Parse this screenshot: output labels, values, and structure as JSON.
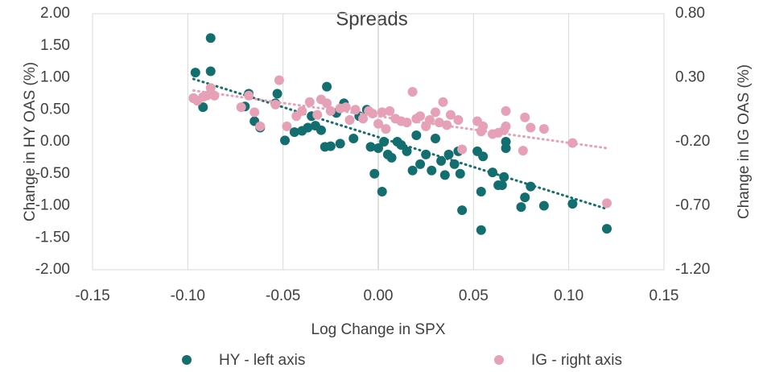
{
  "chart_data": {
    "type": "scatter",
    "title": "Spreads",
    "x_label": "Log Change in SPX",
    "y_label": "Change in HY OAS (%)",
    "y2_label": "Change in IG OAS (%)",
    "xlim": [
      -0.15,
      0.15
    ],
    "xticks": [
      {
        "value": -0.15,
        "label": "-0.15"
      },
      {
        "value": -0.1,
        "label": "-0.10"
      },
      {
        "value": -0.05,
        "label": "-0.05"
      },
      {
        "value": 0,
        "label": "0.00"
      },
      {
        "value": 0.05,
        "label": "0.05"
      },
      {
        "value": 0.1,
        "label": "0.10"
      },
      {
        "value": 0.15,
        "label": "0.15"
      }
    ],
    "ylim": [
      -2,
      2
    ],
    "yticks": [
      {
        "value": -2,
        "label": "-2.00"
      },
      {
        "value": -1.5,
        "label": "-1.50"
      },
      {
        "value": -1,
        "label": "-1.00"
      },
      {
        "value": -0.5,
        "label": "-0.50"
      },
      {
        "value": 0,
        "label": "0.00"
      },
      {
        "value": 0.5,
        "label": "0.50"
      },
      {
        "value": 1,
        "label": "1.00"
      },
      {
        "value": 1.5,
        "label": "1.50"
      },
      {
        "value": 2,
        "label": "2.00"
      }
    ],
    "y2lim": [
      -1.2,
      0.8
    ],
    "y2ticks": [
      {
        "value": -1.2,
        "label": "-1.20"
      },
      {
        "value": -0.7,
        "label": "-0.70"
      },
      {
        "value": -0.2,
        "label": "-0.20"
      },
      {
        "value": 0.3,
        "label": "0.30"
      },
      {
        "value": 0.8,
        "label": "0.80"
      }
    ],
    "grid": "x",
    "legend": "bottom",
    "series": [
      {
        "name": "HY - left axis",
        "color": "#136e6f",
        "axis": "y",
        "x": [
          -0.097,
          -0.096,
          -0.092,
          -0.088,
          -0.088,
          -0.07,
          -0.068,
          -0.065,
          -0.062,
          -0.054,
          -0.053,
          -0.049,
          -0.044,
          -0.04,
          -0.037,
          -0.035,
          -0.033,
          -0.03,
          -0.028,
          -0.027,
          -0.025,
          -0.022,
          -0.02,
          -0.018,
          -0.013,
          -0.01,
          -0.006,
          -0.004,
          -0.002,
          0.0,
          0.002,
          0.003,
          0.005,
          0.007,
          0.01,
          0.012,
          0.015,
          0.018,
          0.02,
          0.022,
          0.025,
          0.028,
          0.03,
          0.033,
          0.035,
          0.037,
          0.04,
          0.042,
          0.043,
          0.044,
          0.052,
          0.054,
          0.054,
          0.055,
          0.06,
          0.063,
          0.065,
          0.066,
          0.067,
          0.067,
          0.075,
          0.077,
          0.08,
          0.087,
          0.102,
          0.12
        ],
        "values": [
          0.68,
          1.08,
          0.54,
          1.62,
          1.1,
          0.55,
          0.75,
          0.32,
          0.22,
          0.6,
          0.75,
          0.02,
          0.15,
          0.17,
          0.22,
          0.4,
          0.25,
          0.18,
          -0.08,
          0.86,
          -0.07,
          0.45,
          -0.03,
          0.6,
          0.05,
          0.4,
          0.5,
          -0.08,
          -0.5,
          -0.1,
          -0.78,
          0.0,
          -0.2,
          -0.25,
          0.0,
          -0.05,
          -0.15,
          -0.45,
          0.1,
          -0.35,
          -0.2,
          -0.45,
          0.05,
          -0.3,
          -0.52,
          -0.2,
          -0.35,
          -0.15,
          -0.5,
          -1.07,
          -0.15,
          -0.78,
          -1.38,
          -0.23,
          -0.48,
          -0.68,
          -0.68,
          -0.55,
          -0.1,
          0.0,
          -1.02,
          -0.87,
          -0.7,
          -1.0,
          -0.97,
          -1.36
        ],
        "trend": {
          "x": [
            -0.097,
            0.12
          ],
          "values": [
            0.98,
            -1.05
          ]
        }
      },
      {
        "name": "IG - right axis",
        "color": "#e6a1b6",
        "axis": "y2",
        "x": [
          -0.097,
          -0.095,
          -0.092,
          -0.09,
          -0.088,
          -0.086,
          -0.072,
          -0.068,
          -0.065,
          -0.062,
          -0.054,
          -0.052,
          -0.048,
          -0.043,
          -0.04,
          -0.036,
          -0.032,
          -0.03,
          -0.027,
          -0.025,
          -0.02,
          -0.017,
          -0.015,
          -0.012,
          -0.008,
          -0.005,
          -0.003,
          0.0,
          0.002,
          0.004,
          0.006,
          0.009,
          0.012,
          0.015,
          0.018,
          0.02,
          0.022,
          0.025,
          0.027,
          0.03,
          0.032,
          0.034,
          0.036,
          0.038,
          0.042,
          0.044,
          0.052,
          0.054,
          0.055,
          0.06,
          0.063,
          0.066,
          0.067,
          0.067,
          0.076,
          0.077,
          0.08,
          0.087,
          0.102,
          0.12
        ],
        "values": [
          0.14,
          0.12,
          0.15,
          0.16,
          0.22,
          0.16,
          0.07,
          0.16,
          0.03,
          -0.08,
          0.09,
          0.28,
          -0.08,
          0.0,
          0.04,
          0.11,
          0.01,
          0.13,
          0.1,
          0.04,
          0.06,
          0.07,
          -0.03,
          0.05,
          -0.02,
          0.04,
          0.02,
          -0.06,
          0.03,
          -0.1,
          0.04,
          -0.02,
          -0.04,
          -0.05,
          0.19,
          -0.02,
          0.0,
          -0.08,
          -0.03,
          0.03,
          -0.05,
          0.11,
          -0.07,
          0.01,
          -0.03,
          -0.26,
          -0.04,
          -0.12,
          -0.08,
          -0.14,
          -0.13,
          -0.11,
          -0.08,
          0.04,
          -0.27,
          -0.01,
          -0.09,
          -0.1,
          -0.21,
          -0.68
        ],
        "trend": {
          "x": [
            -0.097,
            0.12
          ],
          "values": [
            0.2,
            -0.25
          ]
        }
      }
    ]
  }
}
